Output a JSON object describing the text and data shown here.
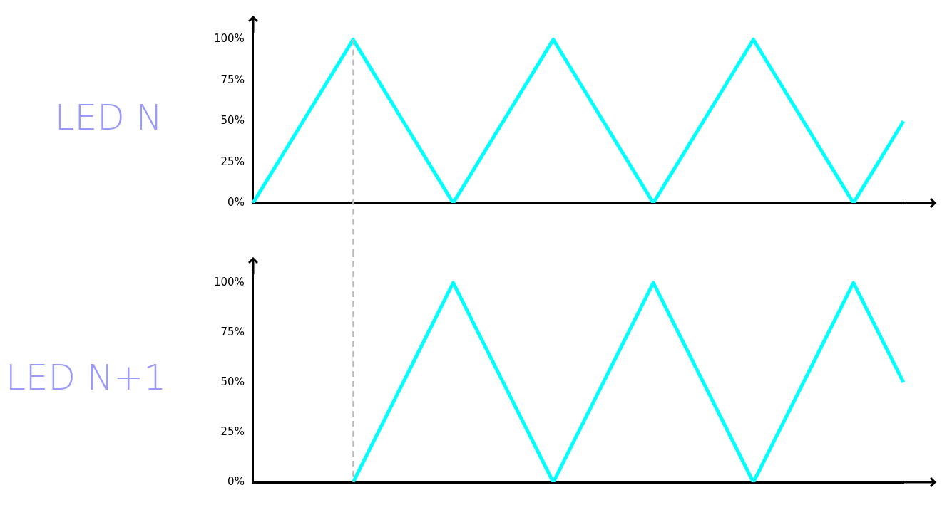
{
  "chart_data": [
    {
      "type": "line",
      "ylabel": "LED N",
      "categories": [
        null,
        null,
        null,
        null,
        null,
        null,
        null,
        null,
        null,
        null,
        null,
        null,
        null,
        null
      ],
      "series": [
        {
          "color": "#00ffff",
          "values": [
            0,
            50,
            100,
            50,
            0,
            50,
            100,
            50,
            0,
            50,
            100,
            50,
            0,
            50
          ]
        }
      ],
      "ylim": [
        0,
        105
      ],
      "yticks": [
        {
          "value": 0,
          "label": "0%"
        },
        {
          "value": 25,
          "label": "25%"
        },
        {
          "value": 50,
          "label": "50%"
        },
        {
          "value": 75,
          "label": "75%"
        },
        {
          "value": 100,
          "label": "100%"
        }
      ],
      "grid": false,
      "legend": false,
      "marker": "none",
      "line_style": "solid",
      "tick_labels": "y"
    },
    {
      "type": "line",
      "ylabel": "LED N+1",
      "categories": [
        null,
        null,
        null,
        null,
        null,
        null,
        null,
        null,
        null,
        null,
        null,
        null,
        null,
        null
      ],
      "series": [
        {
          "color": "#00ffff",
          "values": [
            null,
            null,
            0,
            50,
            100,
            50,
            0,
            50,
            100,
            50,
            0,
            50,
            100,
            50
          ]
        }
      ],
      "ylim": [
        0,
        105
      ],
      "yticks": [
        {
          "value": 0,
          "label": "0%"
        },
        {
          "value": 25,
          "label": "25%"
        },
        {
          "value": 50,
          "label": "50%"
        },
        {
          "value": 75,
          "label": "75%"
        },
        {
          "value": 100,
          "label": "100%"
        }
      ],
      "grid": false,
      "legend": false,
      "marker": "none",
      "line_style": "solid",
      "tick_labels": "y"
    }
  ]
}
